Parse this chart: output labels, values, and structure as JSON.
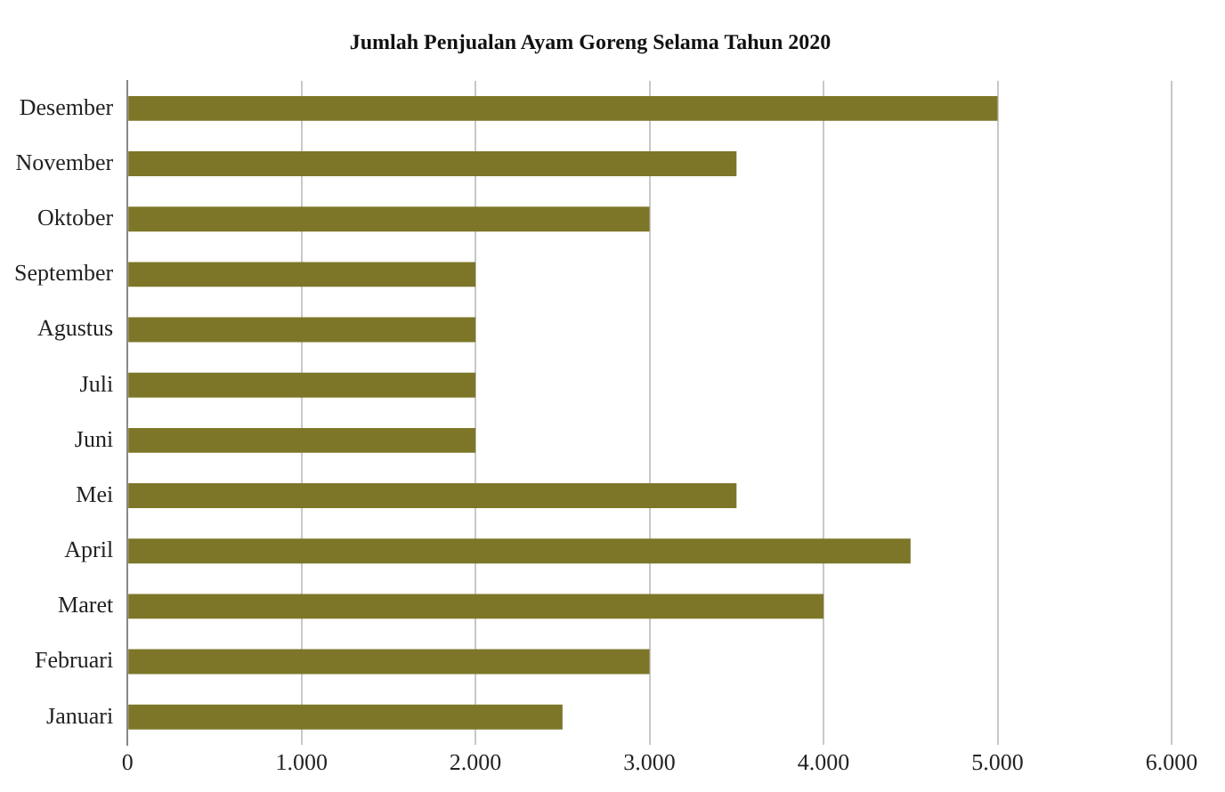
{
  "chart_data": {
    "type": "bar",
    "orientation": "horizontal",
    "title": "Jumlah Penjualan Ayam Goreng Selama Tahun 2020",
    "categories": [
      "Desember",
      "November",
      "Oktober",
      "September",
      "Agustus",
      "Juli",
      "Juni",
      "Mei",
      "April",
      "Maret",
      "Februari",
      "Januari"
    ],
    "values": [
      5000,
      3500,
      3000,
      2000,
      2000,
      2000,
      2000,
      3500,
      4500,
      4000,
      3000,
      2500
    ],
    "color": "#7d7628",
    "xlim": [
      0,
      6000
    ],
    "xticks": [
      0,
      {
        "value": 1000,
        "label": "1.000"
      },
      {
        "value": 2000,
        "label": "2.000"
      },
      {
        "value": 3000,
        "label": "3.000"
      },
      {
        "value": 4000,
        "label": "4.000"
      },
      {
        "value": 5000,
        "label": "5.000"
      },
      {
        "value": 6000,
        "label": "6.000"
      }
    ],
    "grid": "x",
    "legend": false
  }
}
